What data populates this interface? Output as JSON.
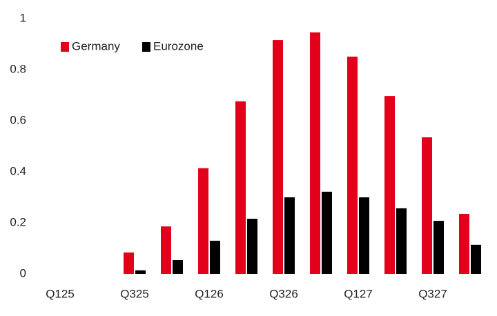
{
  "chart_data": {
    "type": "bar",
    "categories": [
      "Q125",
      null,
      "Q325",
      null,
      "Q126",
      null,
      "Q326",
      null,
      "Q127",
      null,
      "Q327",
      null
    ],
    "series": [
      {
        "name": "Germany",
        "color": "#e2001a",
        "values": [
          0,
          0,
          0.084,
          0.186,
          0.414,
          0.676,
          0.916,
          0.946,
          0.851,
          0.697,
          0.535,
          0.235
        ]
      },
      {
        "name": "Eurozone",
        "color": "#000000",
        "values": [
          0,
          0,
          0.014,
          0.054,
          0.13,
          0.216,
          0.3,
          0.322,
          0.3,
          0.257,
          0.208,
          0.114
        ]
      }
    ],
    "ylim": [
      0,
      1
    ],
    "yticks": [
      0,
      0.2,
      0.4,
      0.6,
      0.8,
      1
    ],
    "grid": false,
    "legend": "top-left"
  }
}
